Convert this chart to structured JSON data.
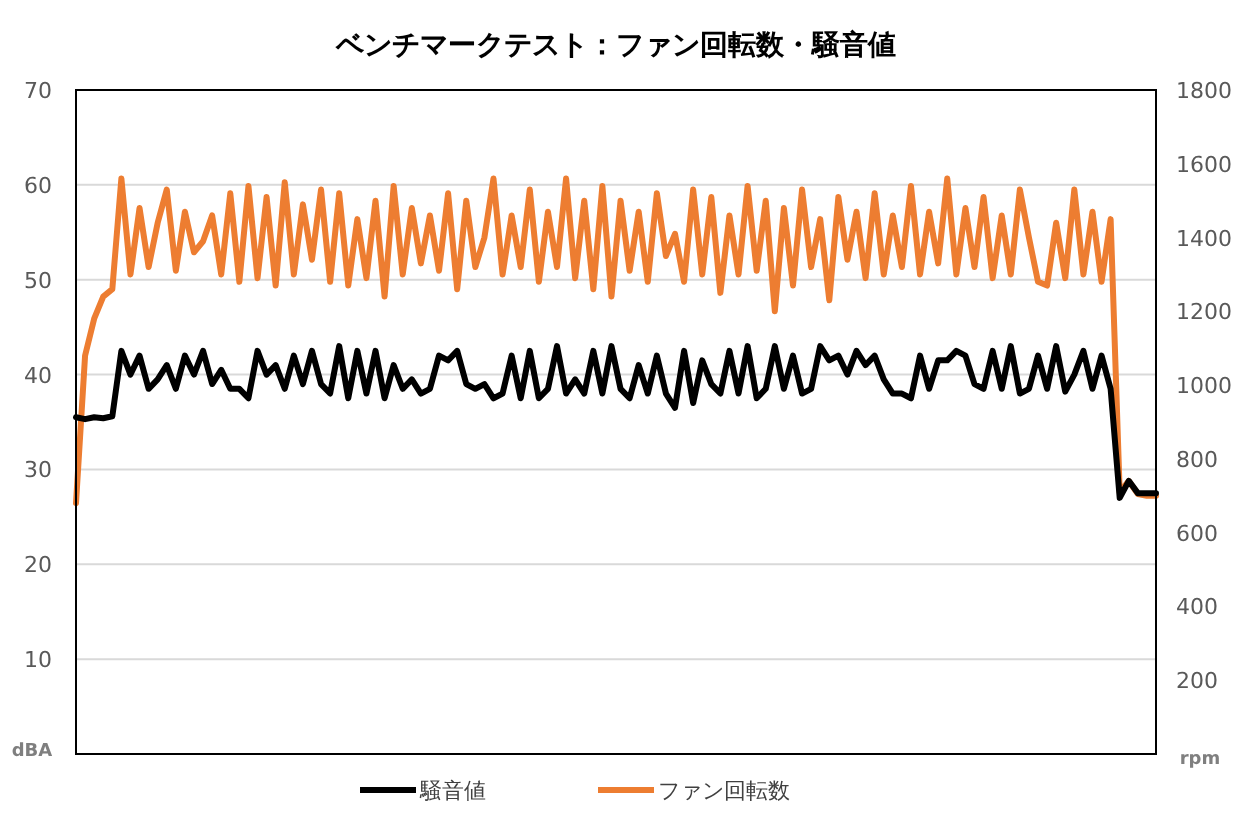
{
  "chart_data": {
    "type": "line",
    "title": "ベンチマークテスト：ファン回転数・騒音値",
    "ylabel": "dBA",
    "y2label": "rpm",
    "categories": [
      null,
      null,
      null,
      null,
      null,
      null,
      null,
      null,
      null,
      null,
      null,
      null,
      null,
      null,
      null,
      null,
      null,
      null,
      null,
      null,
      null,
      null,
      null,
      null,
      null,
      null,
      null,
      null,
      null,
      null,
      null,
      null,
      null,
      null,
      null,
      null,
      null,
      null,
      null,
      null,
      null,
      null,
      null,
      null,
      null,
      null,
      null,
      null,
      null,
      null,
      null,
      null,
      null,
      null,
      null,
      null,
      null,
      null,
      null,
      null,
      null,
      null,
      null,
      null,
      null,
      null,
      null,
      null,
      null,
      null,
      null,
      null,
      null,
      null,
      null,
      null,
      null,
      null,
      null,
      null,
      null,
      null,
      null,
      null,
      null,
      null,
      null,
      null,
      null,
      null,
      null,
      null,
      null,
      null,
      null,
      null,
      null,
      null,
      null,
      null,
      null,
      null,
      null,
      null,
      null,
      null,
      null,
      null,
      null,
      null,
      null,
      null,
      null,
      null,
      null,
      null,
      null,
      null,
      null,
      null
    ],
    "series": [
      {
        "name": "騒音値",
        "color": "#000000",
        "values": [
          35.5,
          35.3,
          35.5,
          35.4,
          35.6,
          42.5,
          40,
          42,
          38.5,
          39.5,
          41,
          38.5,
          42,
          40,
          42.5,
          39,
          40.5,
          38.5,
          38.5,
          37.5,
          42.5,
          40,
          41,
          38.5,
          42,
          39,
          42.5,
          39,
          38,
          43,
          37.5,
          42.5,
          38,
          42.5,
          37.5,
          41,
          38.5,
          39.5,
          38,
          38.5,
          42,
          41.5,
          42.5,
          39,
          38.5,
          39,
          37.5,
          38,
          42,
          37.5,
          42.5,
          37.5,
          38.5,
          43,
          38,
          39.5,
          38,
          42.5,
          38,
          43,
          38.5,
          37.5,
          41,
          38,
          42,
          38,
          36.5,
          42.5,
          37,
          41.5,
          39,
          38,
          42.5,
          38,
          43,
          37.5,
          38.5,
          43,
          38.5,
          42,
          38,
          38.5,
          43,
          41.5,
          42,
          40,
          42.5,
          41,
          42,
          39.5,
          38,
          38,
          37.5,
          42,
          38.5,
          41.5,
          41.5,
          42.5,
          42,
          39,
          38.5,
          42.5,
          38.5,
          43,
          38,
          38.5,
          42,
          38.5,
          43,
          38.2,
          40,
          42.5,
          38.5,
          42,
          38.5,
          27,
          28.8,
          27.5,
          27.5,
          27.5
        ]
      },
      {
        "name": "ファン回転数",
        "color": "#ed7d31",
        "axis": "y2",
        "values": [
          680,
          1080,
          1180,
          1240,
          1260,
          1560,
          1300,
          1480,
          1320,
          1440,
          1530,
          1310,
          1470,
          1360,
          1390,
          1460,
          1300,
          1520,
          1280,
          1540,
          1290,
          1510,
          1270,
          1550,
          1300,
          1490,
          1340,
          1530,
          1280,
          1520,
          1270,
          1450,
          1290,
          1500,
          1240,
          1540,
          1300,
          1480,
          1330,
          1460,
          1310,
          1520,
          1260,
          1500,
          1320,
          1400,
          1560,
          1300,
          1460,
          1320,
          1530,
          1280,
          1470,
          1320,
          1560,
          1290,
          1500,
          1260,
          1540,
          1240,
          1500,
          1310,
          1470,
          1280,
          1520,
          1350,
          1410,
          1280,
          1530,
          1300,
          1510,
          1250,
          1460,
          1300,
          1540,
          1310,
          1500,
          1200,
          1480,
          1270,
          1530,
          1320,
          1450,
          1230,
          1510,
          1340,
          1470,
          1290,
          1520,
          1300,
          1460,
          1320,
          1540,
          1300,
          1470,
          1330,
          1560,
          1300,
          1480,
          1320,
          1510,
          1290,
          1460,
          1300,
          1530,
          1400,
          1280,
          1270,
          1440,
          1290,
          1530,
          1300,
          1470,
          1280,
          1450,
          710,
          740,
          705,
          700,
          700
        ]
      }
    ],
    "ylim": [
      0,
      70
    ],
    "yticks": [
      10,
      20,
      30,
      40,
      50,
      60,
      70
    ],
    "y2lim": [
      0,
      1800
    ],
    "y2ticks": [
      200,
      400,
      600,
      800,
      1000,
      1200,
      1400,
      1600,
      1800
    ],
    "grid": "y",
    "legend": "bottom"
  }
}
